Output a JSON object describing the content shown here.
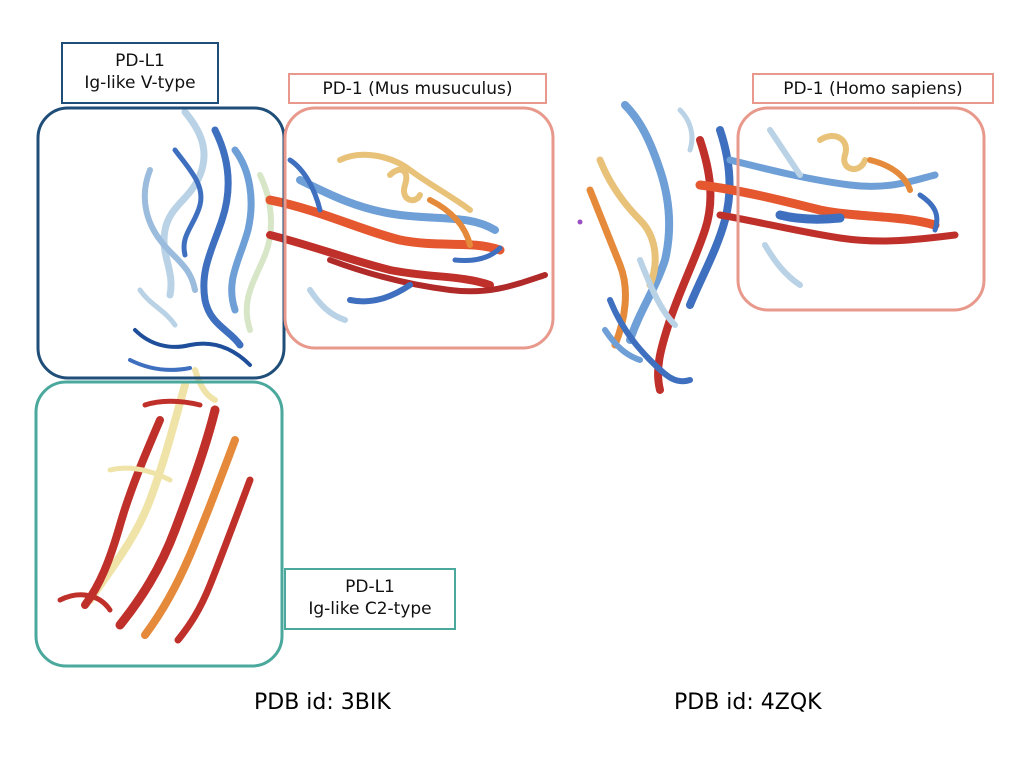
{
  "labels": {
    "pdl1_vtype": {
      "line1": "PD-L1",
      "line2": "Ig-like V-type"
    },
    "pd1_mouse": "PD-1 (Mus musuculus)",
    "pd1_human": "PD-1 (Homo sapiens)",
    "pdl1_c2type": {
      "line1": "PD-L1",
      "line2": "Ig-like C2-type"
    }
  },
  "captions": {
    "left": "PDB id: 3BIK",
    "right": "PDB id: 4ZQK"
  },
  "colors": {
    "vtype_border": "#1f4e79",
    "pd1_border": "#e8998c",
    "c2type_border": "#4aa89c",
    "ribbon_red": "#c0302a",
    "ribbon_orange": "#e58a3a",
    "ribbon_tan": "#e9c27a",
    "ribbon_yellow": "#efe3a8",
    "ribbon_blue": "#3f6fbf",
    "ribbon_midblue": "#6e9fd6",
    "ribbon_lightblue": "#b9d2e6",
    "ribbon_pale": "#d8e6c8"
  }
}
